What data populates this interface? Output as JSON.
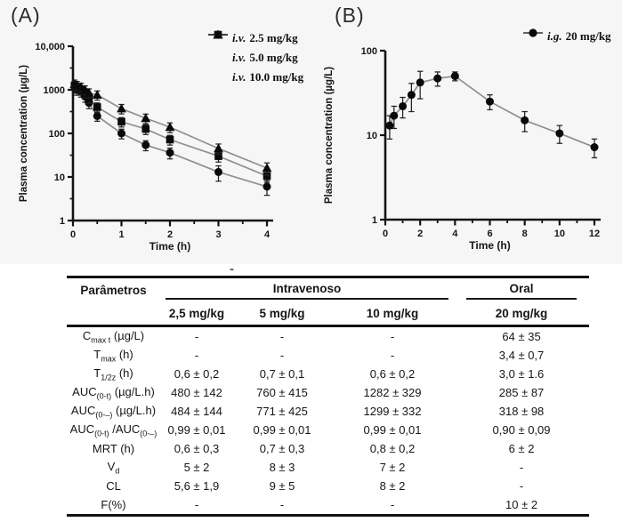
{
  "stray_mark": "-",
  "figure": {
    "background": "#f6f6f6",
    "axis_color": "#141414",
    "marker_color": "#0a0a0a",
    "line_color": "#8f8f8f",
    "error_bar_color": "#222222"
  },
  "chart_data": [
    {
      "type": "line",
      "title": "(A)",
      "xlabel": "Time (h)",
      "ylabel": "Plasma concentration (µg/L)",
      "y_scale": "log",
      "ylim": [
        1,
        10000
      ],
      "y_tick_labels": [
        "1",
        "10",
        "100",
        "1000",
        "10,000"
      ],
      "y_minor_ticks": true,
      "xlim": [
        0,
        4
      ],
      "x_ticks": [
        0,
        1,
        2,
        3,
        4
      ],
      "x_minor_step": 0.5,
      "legend_position": "top-right",
      "legend": [
        {
          "route": "i.v.",
          "dose": "2.5  mg/kg",
          "marker": "circle"
        },
        {
          "route": "i.v.",
          "dose": "5.0  mg/kg",
          "marker": "square"
        },
        {
          "route": "i.v.",
          "dose": "10.0 mg/kg",
          "marker": "triangle"
        }
      ],
      "x": [
        0.033,
        0.083,
        0.167,
        0.25,
        0.33,
        0.5,
        1,
        1.5,
        2,
        3,
        4
      ],
      "series": [
        {
          "name": "i.v. 2.5 mg/kg",
          "marker": "circle",
          "values": [
            1150,
            1000,
            900,
            700,
            500,
            250,
            100,
            54,
            36,
            13,
            6
          ],
          "errors": [
            280,
            250,
            220,
            180,
            130,
            60,
            25,
            14,
            10,
            5,
            2.2
          ]
        },
        {
          "name": "i.v. 5.0 mg/kg",
          "marker": "square",
          "values": [
            1250,
            1100,
            1000,
            850,
            650,
            400,
            185,
            126,
            72,
            30,
            10.5
          ],
          "errors": [
            300,
            270,
            240,
            200,
            160,
            100,
            45,
            32,
            18,
            8,
            3
          ]
        },
        {
          "name": "i.v. 10.0 mg/kg",
          "marker": "triangle",
          "values": [
            1350,
            1250,
            1150,
            1000,
            850,
            760,
            370,
            222,
            139,
            45,
            16
          ],
          "errors": [
            320,
            300,
            270,
            230,
            200,
            180,
            90,
            55,
            35,
            12,
            5
          ]
        }
      ]
    },
    {
      "type": "line",
      "title": "(B)",
      "xlabel": "Time (h)",
      "ylabel": "Plasma concentration (µg/L)",
      "y_scale": "log",
      "ylim": [
        1,
        100
      ],
      "y_tick_labels": [
        "1",
        "10",
        "100"
      ],
      "y_minor_ticks": false,
      "xlim": [
        0,
        12
      ],
      "x_ticks": [
        0,
        2,
        4,
        6,
        8,
        10,
        12
      ],
      "x_minor_step": 1,
      "legend_position": "top-right",
      "legend": [
        {
          "route": "i.g.",
          "dose": "20 mg/kg",
          "marker": "circle"
        }
      ],
      "x": [
        0.25,
        0.5,
        1,
        1.5,
        2,
        3,
        4,
        6,
        8,
        10,
        12
      ],
      "series": [
        {
          "name": "i.g. 20 mg/kg",
          "marker": "circle",
          "values": [
            13,
            17,
            22,
            30,
            42,
            47,
            50,
            25,
            15,
            10.5,
            7.2
          ],
          "errors": [
            4,
            5,
            6,
            11,
            15,
            9,
            6,
            5,
            4,
            2.5,
            1.8
          ]
        }
      ]
    }
  ],
  "table": {
    "col1_header": "Parâmetros",
    "group_headers": [
      {
        "label": "Intravenoso"
      },
      {
        "label": "Oral"
      }
    ],
    "sub_headers": [
      "2,5 mg/kg",
      "5 mg/kg",
      "10 mg/kg",
      "20 mg/kg"
    ],
    "rows": [
      {
        "label": [
          {
            "t": "C"
          },
          {
            "s": "max t"
          },
          {
            "t": " (µg/L)"
          }
        ],
        "values": [
          "-",
          "-",
          "-",
          "64 ± 35"
        ]
      },
      {
        "label": [
          {
            "t": "T"
          },
          {
            "s": "max"
          },
          {
            "t": " (h)"
          }
        ],
        "values": [
          "-",
          "-",
          "-",
          "3,4 ± 0,7"
        ]
      },
      {
        "label": [
          {
            "t": "T"
          },
          {
            "s": "1/2z"
          },
          {
            "t": " (h)"
          }
        ],
        "values": [
          "0,6 ± 0,2",
          "0,7 ± 0,1",
          "0,6 ± 0,2",
          "3,0 ± 1.6"
        ]
      },
      {
        "label": [
          {
            "t": "AUC"
          },
          {
            "s": "(0-t)"
          },
          {
            "t": " (µg/L.h)"
          }
        ],
        "values": [
          "480 ± 142",
          "760 ± 415",
          "1282 ± 329",
          "285 ± 87"
        ]
      },
      {
        "label": [
          {
            "t": "AUC"
          },
          {
            "s": "(0-–)"
          },
          {
            "t": " (µg/L.h)"
          }
        ],
        "values": [
          "484 ± 144",
          "771 ± 425",
          "1299 ± 332",
          "318 ± 98"
        ]
      },
      {
        "label": [
          {
            "t": "AUC"
          },
          {
            "s": "(0-t)"
          },
          {
            "t": " /AUC"
          },
          {
            "s": "(0-–)"
          }
        ],
        "values": [
          "0,99 ± 0,01",
          "0,99 ± 0,01",
          "0,99 ± 0,01",
          "0,90 ± 0,09"
        ]
      },
      {
        "label": [
          {
            "t": "MRT (h)"
          }
        ],
        "values": [
          "0,6 ± 0,3",
          "0,7 ± 0,3",
          "0,8 ± 0,2",
          "6 ± 2"
        ]
      },
      {
        "label": [
          {
            "t": "V"
          },
          {
            "s": "d"
          }
        ],
        "values": [
          "5 ± 2",
          "8 ± 3",
          "7 ± 2",
          "-"
        ]
      },
      {
        "label": [
          {
            "t": "CL"
          }
        ],
        "values": [
          "5,6 ± 1,9",
          "9 ± 5",
          "8 ± 2",
          "-"
        ]
      },
      {
        "label": [
          {
            "t": "F(%)"
          }
        ],
        "values": [
          "-",
          "-",
          "-",
          "10 ± 2"
        ]
      }
    ]
  }
}
